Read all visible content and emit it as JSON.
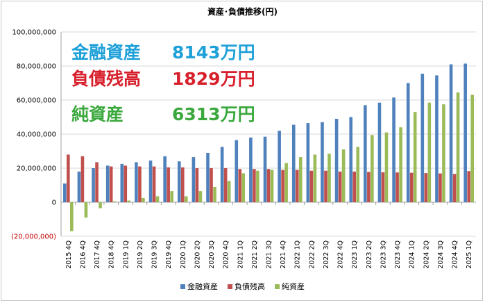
{
  "chart_data": {
    "type": "bar",
    "title": "資産･負債推移(円)",
    "categories": [
      "2015 4Q",
      "2016 4Q",
      "2017 4Q",
      "2018 4Q",
      "2019 1Q",
      "2019 2Q",
      "2019 3Q",
      "2019 4Q",
      "2020 1Q",
      "2020 2Q",
      "2020 3Q",
      "2020 4Q",
      "2021 1Q",
      "2021 2Q",
      "2021 3Q",
      "2021 4Q",
      "2022 1Q",
      "2022 2Q",
      "2022 3Q",
      "2022 4Q",
      "2023 1Q",
      "2023 2Q",
      "2023 3Q",
      "2023 4Q",
      "2024 1Q",
      "2024 2Q",
      "2024 3Q",
      "2024 4Q",
      "2025 1Q"
    ],
    "series": [
      {
        "name": "金融資産",
        "color": "#4f81bd",
        "values": [
          11000000,
          18000000,
          20000000,
          21500000,
          22500000,
          23500000,
          24500000,
          27000000,
          24000000,
          26500000,
          29000000,
          32500000,
          36500000,
          38000000,
          38500000,
          42000000,
          45500000,
          46500000,
          47000000,
          49000000,
          50000000,
          57000000,
          58500000,
          61500000,
          70000000,
          75500000,
          74500000,
          81000000,
          81430000
        ]
      },
      {
        "name": "負債残高",
        "color": "#c0504d",
        "values": [
          28000000,
          27000000,
          23500000,
          21000000,
          21500000,
          21000000,
          21000000,
          20500000,
          20500000,
          20000000,
          20000000,
          20000000,
          19500000,
          19500000,
          19500000,
          19000000,
          19000000,
          18500000,
          18500000,
          18000000,
          18000000,
          17800000,
          17600000,
          17500000,
          17300000,
          17100000,
          16900000,
          16600000,
          18290000
        ]
      },
      {
        "name": "純資産",
        "color": "#9bbb59",
        "values": [
          -17000000,
          -9000000,
          -3500000,
          500000,
          1000000,
          2500000,
          3500000,
          6500000,
          3500000,
          6500000,
          9000000,
          12500000,
          17000000,
          18500000,
          19000000,
          23000000,
          26500000,
          28000000,
          28500000,
          31000000,
          32500000,
          39500000,
          41000000,
          44000000,
          53000000,
          58500000,
          57500000,
          64500000,
          63130000
        ]
      }
    ],
    "yticks": [
      "100,000,000",
      "80,000,000",
      "60,000,000",
      "40,000,000",
      "20,000,000",
      "0",
      "(20,000,000)"
    ],
    "ylim": [
      -20000000,
      100000000
    ],
    "grid": true,
    "legend_position": "bottom"
  },
  "annotations": [
    {
      "label": "金融資産",
      "value": "8143万円",
      "color": "#1ea0d8"
    },
    {
      "label": "負債残高",
      "value": "1829万円",
      "color": "#d8202c"
    },
    {
      "label": "純資産",
      "value": "6313万円",
      "color": "#3aa83c"
    }
  ]
}
